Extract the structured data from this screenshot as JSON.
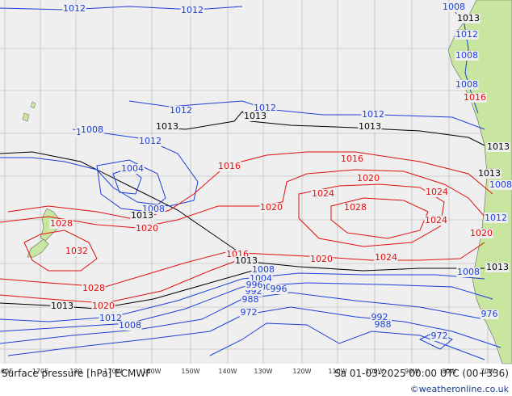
{
  "footer": {
    "title": "Surface pressure [hPa] ECMWF",
    "datetime": "Sa 01-03-2025 00:00 UTC (00+336)",
    "credit": "©weatheronline.co.uk"
  },
  "longitude_labels": [
    "160E",
    "170E",
    "180",
    "170W",
    "160W",
    "150W",
    "140W",
    "130W",
    "120W",
    "110W",
    "100W",
    "90W",
    "80W",
    "70W"
  ],
  "colors": {
    "background": "#efefef",
    "land": "#c8e6a0",
    "grid": "#b0b0b0",
    "low_isobar": "#1e3fd8",
    "high_isobar": "#e01010",
    "reference_isobar": "#000000"
  },
  "isobar_labels": [
    {
      "text": "1012",
      "color": "blue"
    },
    {
      "text": "1012",
      "color": "blue"
    },
    {
      "text": "1008",
      "color": "blue"
    },
    {
      "text": "1013",
      "color": "black"
    },
    {
      "text": "1012",
      "color": "blue"
    },
    {
      "text": "1008",
      "color": "blue"
    },
    {
      "text": "1008",
      "color": "blue"
    },
    {
      "text": "1012",
      "color": "blue"
    },
    {
      "text": "1012",
      "color": "blue"
    },
    {
      "text": "1013",
      "color": "black"
    },
    {
      "text": "1013",
      "color": "black"
    },
    {
      "text": "1012",
      "color": "blue"
    },
    {
      "text": "1013",
      "color": "black"
    },
    {
      "text": "1008",
      "color": "blue"
    },
    {
      "text": "1012",
      "color": "blue"
    },
    {
      "text": "1004",
      "color": "blue"
    },
    {
      "text": "1008",
      "color": "blue"
    },
    {
      "text": "1013",
      "color": "black"
    },
    {
      "text": "1016",
      "color": "red"
    },
    {
      "text": "1016",
      "color": "red"
    },
    {
      "text": "1020",
      "color": "red"
    },
    {
      "text": "1024",
      "color": "red"
    },
    {
      "text": "1024",
      "color": "red"
    },
    {
      "text": "1028",
      "color": "red"
    },
    {
      "text": "1020",
      "color": "red"
    },
    {
      "text": "1020",
      "color": "red"
    },
    {
      "text": "1024",
      "color": "red"
    },
    {
      "text": "1028",
      "color": "red"
    },
    {
      "text": "1032",
      "color": "red"
    },
    {
      "text": "1028",
      "color": "red"
    },
    {
      "text": "1016",
      "color": "red"
    },
    {
      "text": "1013",
      "color": "black"
    },
    {
      "text": "1020",
      "color": "red"
    },
    {
      "text": "1008",
      "color": "blue"
    },
    {
      "text": "1004",
      "color": "blue"
    },
    {
      "text": "1000",
      "color": "blue"
    },
    {
      "text": "996",
      "color": "blue"
    },
    {
      "text": "992",
      "color": "blue"
    },
    {
      "text": "988",
      "color": "blue"
    },
    {
      "text": "972",
      "color": "blue"
    },
    {
      "text": "1013",
      "color": "black"
    },
    {
      "text": "1020",
      "color": "red"
    },
    {
      "text": "1012",
      "color": "blue"
    },
    {
      "text": "1008",
      "color": "blue"
    },
    {
      "text": "996",
      "color": "blue"
    },
    {
      "text": "992",
      "color": "blue"
    },
    {
      "text": "988",
      "color": "blue"
    },
    {
      "text": "972",
      "color": "blue"
    },
    {
      "text": "976",
      "color": "blue"
    },
    {
      "text": "1008",
      "color": "blue"
    },
    {
      "text": "1013",
      "color": "black"
    },
    {
      "text": "1020",
      "color": "red"
    },
    {
      "text": "1012",
      "color": "blue"
    },
    {
      "text": "1013",
      "color": "black"
    },
    {
      "text": "1016",
      "color": "red"
    },
    {
      "text": "1024",
      "color": "red"
    },
    {
      "text": "1013",
      "color": "black"
    },
    {
      "text": "1008",
      "color": "blue"
    },
    {
      "text": "1012",
      "color": "blue"
    },
    {
      "text": "1008",
      "color": "blue"
    }
  ]
}
